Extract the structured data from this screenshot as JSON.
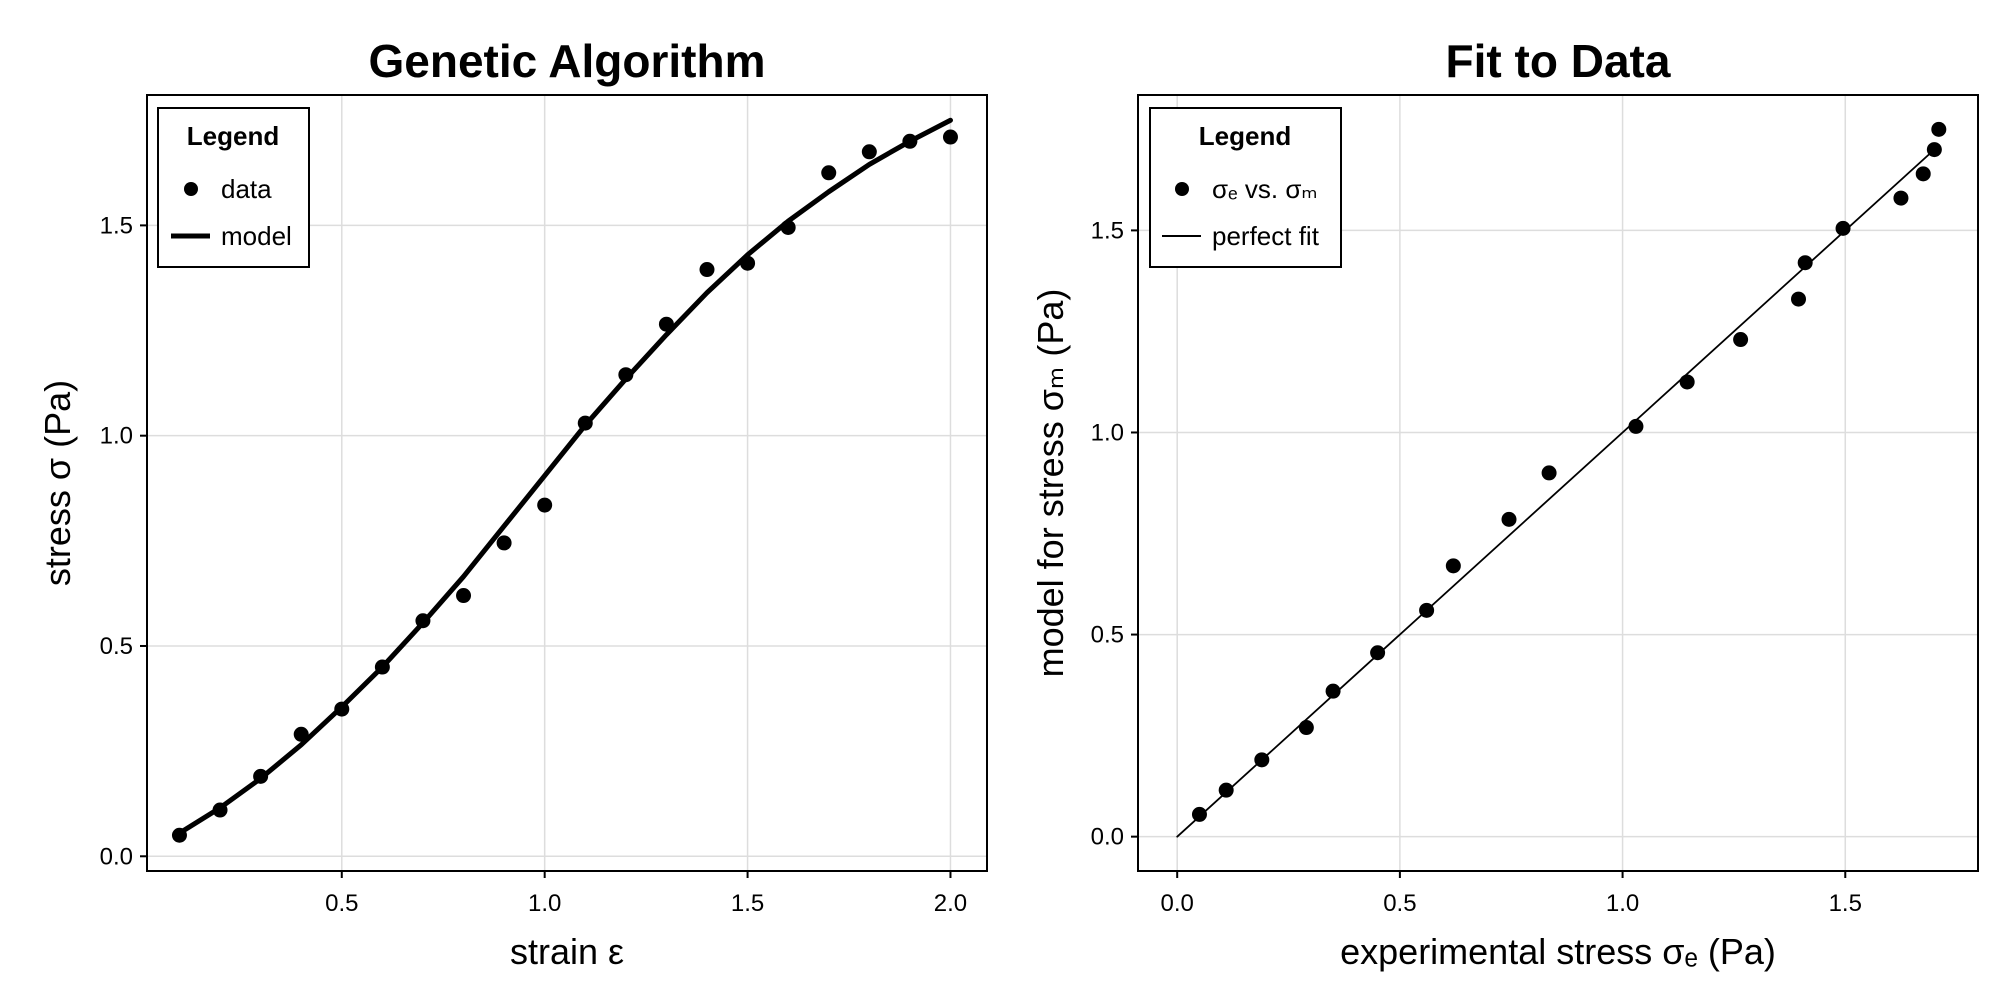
{
  "chart_data": [
    {
      "type": "scatter",
      "title": "Genetic Algorithm",
      "xlabel": "strain ε",
      "ylabel": "stress σ (Pa)",
      "xlim": [
        0.02,
        2.09
      ],
      "ylim": [
        -0.035,
        1.81
      ],
      "xticks": [
        0.5,
        1.0,
        1.5,
        2.0
      ],
      "xtick_labels": [
        "0.5",
        "1.0",
        "1.5",
        "2.0"
      ],
      "yticks": [
        0.0,
        0.5,
        1.0,
        1.5
      ],
      "ytick_labels": [
        "0.0",
        "0.5",
        "1.0",
        "1.5"
      ],
      "grid": true,
      "legend": {
        "title": "Legend",
        "placement": "top-left",
        "entries": [
          {
            "label": "data",
            "kind": "marker"
          },
          {
            "label": "model",
            "kind": "thick-line"
          }
        ]
      },
      "series": [
        {
          "name": "data",
          "kind": "scatter",
          "x": [
            0.1,
            0.2,
            0.3,
            0.4,
            0.5,
            0.6,
            0.7,
            0.8,
            0.9,
            1.0,
            1.1,
            1.2,
            1.3,
            1.4,
            1.5,
            1.6,
            1.7,
            1.8,
            1.9,
            2.0
          ],
          "y": [
            0.05,
            0.11,
            0.19,
            0.29,
            0.35,
            0.45,
            0.56,
            0.62,
            0.745,
            0.835,
            1.03,
            1.145,
            1.265,
            1.395,
            1.41,
            1.495,
            1.625,
            1.675,
            1.7,
            1.71
          ]
        },
        {
          "name": "model",
          "kind": "line",
          "x": [
            0.1,
            0.2,
            0.3,
            0.4,
            0.5,
            0.6,
            0.7,
            0.8,
            0.9,
            1.0,
            1.1,
            1.2,
            1.3,
            1.4,
            1.5,
            1.6,
            1.7,
            1.8,
            1.9,
            2.0
          ],
          "y": [
            0.055,
            0.115,
            0.185,
            0.265,
            0.355,
            0.45,
            0.555,
            0.665,
            0.785,
            0.905,
            1.025,
            1.135,
            1.24,
            1.34,
            1.43,
            1.51,
            1.58,
            1.645,
            1.7,
            1.75
          ]
        }
      ]
    },
    {
      "type": "scatter",
      "title": "Fit to Data",
      "xlabel": "experimental stress σₑ (Pa)",
      "ylabel": "model for stress σₘ (Pa)",
      "xlim": [
        -0.088,
        1.798
      ],
      "ylim": [
        -0.085,
        1.835
      ],
      "xticks": [
        0.0,
        0.5,
        1.0,
        1.5
      ],
      "xtick_labels": [
        "0.0",
        "0.5",
        "1.0",
        "1.5"
      ],
      "yticks": [
        0.0,
        0.5,
        1.0,
        1.5
      ],
      "ytick_labels": [
        "0.0",
        "0.5",
        "1.0",
        "1.5"
      ],
      "grid": true,
      "legend": {
        "title": "Legend",
        "placement": "top-left",
        "entries": [
          {
            "label": "σₑ vs. σₘ",
            "kind": "marker"
          },
          {
            "label": "perfect fit",
            "kind": "thin-line"
          }
        ]
      },
      "series": [
        {
          "name": "σₑ vs. σₘ",
          "kind": "scatter",
          "x": [
            0.05,
            0.11,
            0.19,
            0.29,
            0.35,
            0.45,
            0.56,
            0.62,
            0.745,
            0.835,
            1.03,
            1.145,
            1.265,
            1.395,
            1.41,
            1.495,
            1.625,
            1.675,
            1.7,
            1.71
          ],
          "y": [
            0.055,
            0.115,
            0.19,
            0.27,
            0.36,
            0.455,
            0.56,
            0.67,
            0.785,
            0.9,
            1.015,
            1.125,
            1.23,
            1.33,
            1.42,
            1.505,
            1.58,
            1.64,
            1.7,
            1.75
          ]
        },
        {
          "name": "perfect fit",
          "kind": "line",
          "x": [
            0.0,
            1.71
          ],
          "y": [
            0.0,
            1.71
          ]
        }
      ]
    }
  ]
}
